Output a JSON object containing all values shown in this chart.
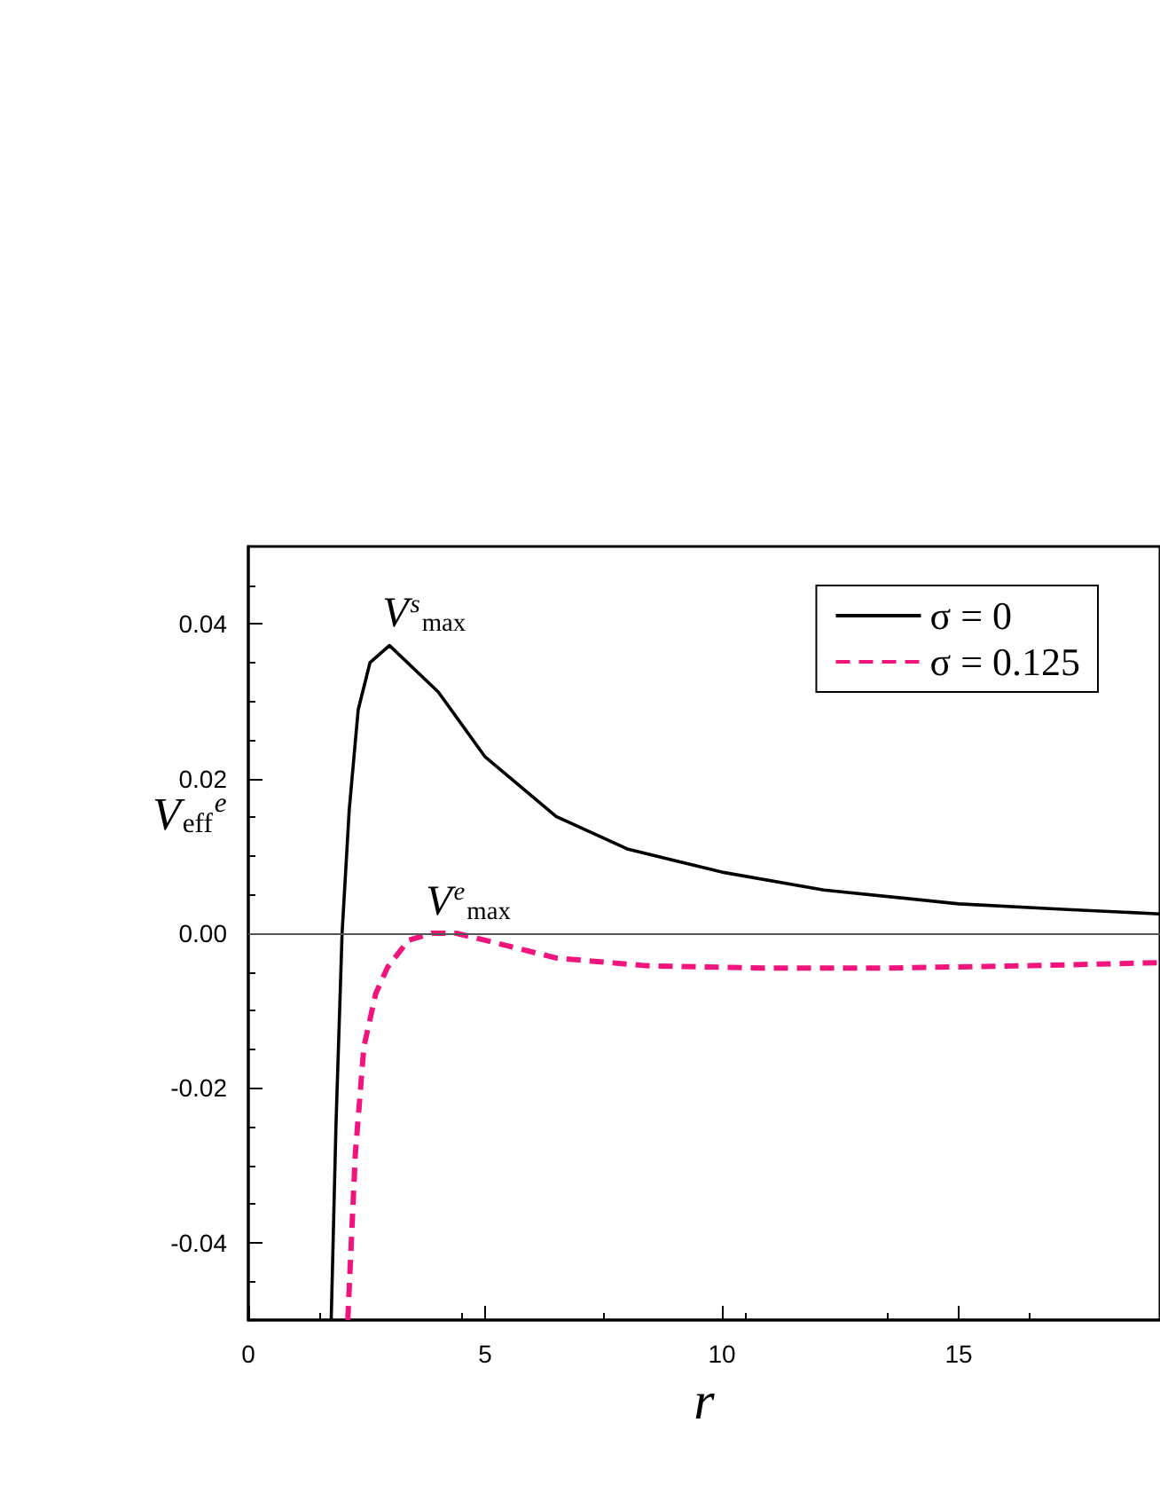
{
  "chart_data": {
    "type": "line",
    "xlabel": "r",
    "ylabel": "V$_{eff}$$^{e}$",
    "xlim": [
      0,
      19.25
    ],
    "xticks": [
      0,
      5,
      10,
      15
    ],
    "ylim": [
      -0.05,
      0.05
    ],
    "yticks": [
      -0.04,
      -0.02,
      {
        "value": 0.0,
        "label": "0.00"
      },
      0.02,
      0.04
    ],
    "legend": "top right",
    "marker": "none",
    "ref_lines": [
      {
        "axis": "y",
        "value": 0,
        "color": "#555555",
        "line_style": "solid"
      }
    ],
    "annotations": [
      {
        "text": "V$^{s}$$_{max}$",
        "x": 2.98,
        "y": 0.0372
      },
      {
        "text": "V$^{e}$$_{max}$",
        "x": 3.9,
        "y": 0
      }
    ],
    "series": [
      {
        "name": "σ = 0",
        "color": "#000000",
        "line_style": "solid",
        "x": [
          1.75,
          1.85,
          1.98,
          2.13,
          2.32,
          2.57,
          2.98,
          4.01,
          5,
          6.5,
          8,
          10,
          12.15,
          15,
          17.2,
          19.25
        ],
        "values": [
          -0.05,
          -0.025,
          0,
          0.0159,
          0.0289,
          0.035,
          0.0372,
          0.0312,
          0.0228,
          0.0151,
          0.0109,
          0.0079,
          0.0056,
          0.0038,
          0.0031,
          0.0025
        ]
      },
      {
        "name": "σ = 0.125",
        "color": "#f0147c",
        "line_style": "dashed",
        "x": [
          2.1,
          2.26,
          2.44,
          2.69,
          2.94,
          3.38,
          3.88,
          4.39,
          5,
          6.5,
          8.4,
          10.9,
          13.4,
          16.5,
          19.25
        ],
        "values": [
          -0.05,
          -0.0285,
          -0.0147,
          -0.0078,
          -0.0044,
          -0.0009,
          0,
          0,
          -0.0009,
          -0.0032,
          -0.0042,
          -0.0045,
          -0.0045,
          -0.0042,
          -0.0038
        ]
      }
    ]
  }
}
